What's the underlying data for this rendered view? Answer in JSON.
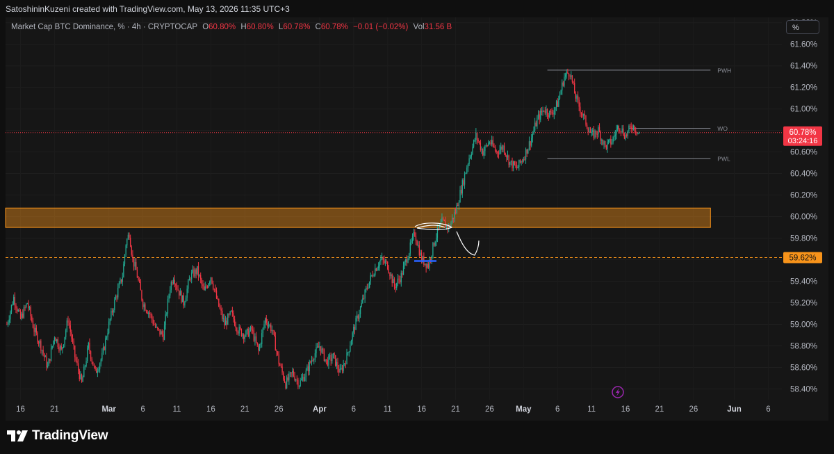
{
  "header": {
    "attribution": "SatoshininKuzeni created with TradingView.com, May 13, 2026 11:35 UTC+3"
  },
  "legend": {
    "symbol": "Market Cap BTC Dominance, % · 4h · CRYPTOCAP",
    "o_label": "O",
    "o_value": "60.80%",
    "h_label": "H",
    "h_value": "60.80%",
    "l_label": "L",
    "l_value": "60.78%",
    "c_label": "C",
    "c_value": "60.78%",
    "change": "−0.01 (−0.02%)",
    "vol_label": "Vol",
    "vol_value": "31.56 B"
  },
  "scale_button": "%",
  "footer": {
    "brand": "TradingView"
  },
  "colors": {
    "up": "#22ab94",
    "down": "#f23645",
    "zone": "#f7931a",
    "support": "#f7931a",
    "level_line": "#8a8d96",
    "price_badge": "#f23645",
    "support_badge": "#f7931a"
  },
  "chart_data": {
    "type": "candlestick",
    "timeframe": "4h",
    "y_unit": "%",
    "ylim": [
      58.3,
      61.85
    ],
    "y_ticks": [
      "61.80%",
      "61.60%",
      "61.40%",
      "61.20%",
      "61.00%",
      "60.80%",
      "60.60%",
      "60.40%",
      "60.20%",
      "60.00%",
      "59.80%",
      "59.60%",
      "59.40%",
      "59.20%",
      "59.00%",
      "58.80%",
      "58.60%",
      "58.40%"
    ],
    "x_ticks": [
      {
        "label": "16",
        "day": 0
      },
      {
        "label": "21",
        "day": 5
      },
      {
        "label": "Mar",
        "day": 13
      },
      {
        "label": "6",
        "day": 18
      },
      {
        "label": "11",
        "day": 23
      },
      {
        "label": "16",
        "day": 28
      },
      {
        "label": "21",
        "day": 33
      },
      {
        "label": "26",
        "day": 38
      },
      {
        "label": "Apr",
        "day": 44
      },
      {
        "label": "6",
        "day": 49
      },
      {
        "label": "11",
        "day": 54
      },
      {
        "label": "16",
        "day": 59
      },
      {
        "label": "21",
        "day": 64
      },
      {
        "label": "26",
        "day": 69
      },
      {
        "label": "May",
        "day": 74
      },
      {
        "label": "6",
        "day": 79
      },
      {
        "label": "11",
        "day": 84
      },
      {
        "label": "16",
        "day": 89
      },
      {
        "label": "21",
        "day": 94
      },
      {
        "label": "26",
        "day": 99
      },
      {
        "label": "Jun",
        "day": 105
      },
      {
        "label": "6",
        "day": 110
      }
    ],
    "x_range_days": [
      -2.2,
      112
    ],
    "anchors": [
      [
        -2,
        59.0
      ],
      [
        -1,
        59.25
      ],
      [
        0,
        59.05
      ],
      [
        1,
        59.2
      ],
      [
        2,
        58.95
      ],
      [
        3,
        58.8
      ],
      [
        4,
        58.6
      ],
      [
        5,
        58.9
      ],
      [
        6,
        58.75
      ],
      [
        7,
        59.05
      ],
      [
        8,
        58.7
      ],
      [
        9,
        58.45
      ],
      [
        10,
        58.8
      ],
      [
        11,
        58.55
      ],
      [
        12,
        58.7
      ],
      [
        13,
        59.0
      ],
      [
        14,
        59.25
      ],
      [
        15,
        59.45
      ],
      [
        15.5,
        59.75
      ],
      [
        16,
        59.85
      ],
      [
        16.5,
        59.6
      ],
      [
        17,
        59.5
      ],
      [
        18,
        59.2
      ],
      [
        19,
        59.1
      ],
      [
        20,
        58.95
      ],
      [
        21,
        58.9
      ],
      [
        22,
        59.35
      ],
      [
        22.5,
        59.45
      ],
      [
        23,
        59.35
      ],
      [
        24,
        59.2
      ],
      [
        25,
        59.45
      ],
      [
        26,
        59.5
      ],
      [
        27,
        59.3
      ],
      [
        28,
        59.45
      ],
      [
        29,
        59.2
      ],
      [
        30,
        59.0
      ],
      [
        31,
        59.1
      ],
      [
        32,
        58.95
      ],
      [
        33,
        58.9
      ],
      [
        34,
        58.95
      ],
      [
        35,
        58.75
      ],
      [
        36,
        59.05
      ],
      [
        37,
        58.95
      ],
      [
        38,
        58.65
      ],
      [
        39,
        58.45
      ],
      [
        40,
        58.55
      ],
      [
        41,
        58.45
      ],
      [
        42,
        58.55
      ],
      [
        43,
        58.7
      ],
      [
        44,
        58.8
      ],
      [
        45,
        58.65
      ],
      [
        46,
        58.7
      ],
      [
        47,
        58.55
      ],
      [
        48,
        58.7
      ],
      [
        49,
        58.95
      ],
      [
        50,
        59.15
      ],
      [
        51,
        59.35
      ],
      [
        52,
        59.5
      ],
      [
        53,
        59.6
      ],
      [
        54,
        59.55
      ],
      [
        55,
        59.35
      ],
      [
        56,
        59.45
      ],
      [
        57,
        59.65
      ],
      [
        58,
        59.85
      ],
      [
        59,
        59.6
      ],
      [
        60,
        59.55
      ],
      [
        61,
        59.8
      ],
      [
        62,
        59.95
      ],
      [
        63,
        59.9
      ],
      [
        64,
        60.05
      ],
      [
        65,
        60.3
      ],
      [
        66,
        60.55
      ],
      [
        67,
        60.75
      ],
      [
        68,
        60.6
      ],
      [
        69,
        60.7
      ],
      [
        70,
        60.6
      ],
      [
        71,
        60.65
      ],
      [
        72,
        60.5
      ],
      [
        73,
        60.45
      ],
      [
        74,
        60.55
      ],
      [
        75,
        60.7
      ],
      [
        76,
        60.9
      ],
      [
        77,
        61.0
      ],
      [
        78,
        60.95
      ],
      [
        79,
        61.05
      ],
      [
        80,
        61.3
      ],
      [
        80.8,
        61.35
      ],
      [
        81.5,
        61.15
      ],
      [
        82,
        61.05
      ],
      [
        83,
        60.9
      ],
      [
        84,
        60.75
      ],
      [
        85,
        60.8
      ],
      [
        86,
        60.65
      ],
      [
        87,
        60.7
      ],
      [
        88,
        60.85
      ],
      [
        89,
        60.75
      ],
      [
        90,
        60.85
      ],
      [
        91,
        60.78
      ]
    ],
    "levels": [
      {
        "name": "PWH",
        "value": 61.36,
        "from_day": 77.5,
        "to_day": 101.5
      },
      {
        "name": "WO",
        "value": 60.82,
        "from_day": 89.5,
        "to_day": 101.5
      },
      {
        "name": "PWL",
        "value": 60.54,
        "from_day": 77.5,
        "to_day": 101.5
      }
    ],
    "zones": [
      {
        "y_from": 59.9,
        "y_to": 60.08,
        "from_day": -2.2,
        "to_day": 101.5
      }
    ],
    "support_line": {
      "value": 59.62,
      "label": "59.62%"
    },
    "current_price": {
      "value": 60.78,
      "label": "60.78%",
      "countdown": "03:24:16"
    }
  }
}
